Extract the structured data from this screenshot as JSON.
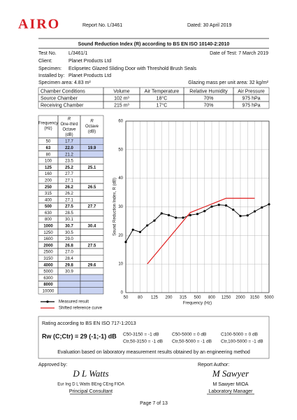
{
  "header": {
    "logo": "AIRO",
    "report_no": "Report No. L/3461",
    "dated": "Dated: 30 April 2019"
  },
  "title": "Sound Reduction Index (R) according to BS EN ISO 10140-2:2010",
  "info": {
    "test_no_label": "Test No.",
    "test_no": "L/3461/1",
    "date_of_test": "Date of Test: 7 March 2019",
    "client_label": "Client:",
    "client": "Planet Products Ltd",
    "specimen_label": "Specimen:",
    "specimen": "Eclipsetec Glazed Sliding Door with Threshold Brush Seals",
    "installed_label": "Installed by:",
    "installed": "Planet Products Ltd",
    "area": "Specimen area: 4.83 m²",
    "mass": "Glazing mass per unit area: 32 kg/m²"
  },
  "conditions": {
    "header": [
      "Chamber Conditions",
      "Volume",
      "Air Temperature",
      "Relative Humidity",
      "Air Pressure"
    ],
    "rows": [
      [
        "Source Chamber",
        "102 m³",
        "18°C",
        "70%",
        "975 hPa"
      ],
      [
        "Receiving Chamber",
        "215 m³",
        "17°C",
        "70%",
        "975 hPa"
      ]
    ]
  },
  "freq_table": {
    "header": [
      [
        "Frequency",
        "(Hz)"
      ],
      [
        "R",
        "One-third",
        "Octave",
        "(dB)"
      ],
      [
        "R",
        "Octave",
        "(dB)"
      ]
    ],
    "rows": [
      [
        "50",
        "17.7",
        null
      ],
      [
        "63",
        "22.0",
        "19.9"
      ],
      [
        "80",
        "21.2",
        null
      ],
      [
        "100",
        "23.5",
        null
      ],
      [
        "125",
        "25.2",
        "25.1"
      ],
      [
        "160",
        "27.7",
        null
      ],
      [
        "200",
        "27.1",
        null
      ],
      [
        "250",
        "26.2",
        "26.5"
      ],
      [
        "315",
        "26.2",
        null
      ],
      [
        "400",
        "27.1",
        null
      ],
      [
        "500",
        "27.5",
        "27.7"
      ],
      [
        "630",
        "28.5",
        null
      ],
      [
        "800",
        "30.1",
        null
      ],
      [
        "1000",
        "30.7",
        "30.4"
      ],
      [
        "1250",
        "30.5",
        null
      ],
      [
        "1600",
        "29.0",
        null
      ],
      [
        "2000",
        "26.8",
        "27.5"
      ],
      [
        "2500",
        "27.0",
        null
      ],
      [
        "3150",
        "28.4",
        null
      ],
      [
        "4000",
        "29.8",
        "29.6"
      ],
      [
        "5000",
        "30.9",
        null
      ],
      [
        "6300",
        null,
        null
      ],
      [
        "8000",
        null,
        null
      ],
      [
        "10000",
        null,
        null
      ]
    ]
  },
  "chart_data": {
    "type": "line",
    "x_label": "Frequency (Hz)",
    "y_label": "Sound Reduction Index, R (dB)",
    "categories": [
      "50",
      null,
      "80",
      null,
      "125",
      null,
      "200",
      null,
      "315",
      null,
      "500",
      null,
      "800",
      null,
      "1250",
      null,
      "2000",
      null,
      "3150",
      null,
      "5000"
    ],
    "ylim": [
      0,
      60
    ],
    "yticks": [
      0,
      10,
      20,
      30,
      40,
      50,
      60
    ],
    "grid": true,
    "series": [
      {
        "name": "Measured result",
        "color": "#000000",
        "marker": true,
        "values": [
          17.7,
          22.0,
          21.2,
          23.5,
          25.2,
          27.7,
          27.1,
          26.2,
          26.2,
          27.1,
          27.5,
          28.5,
          30.1,
          30.7,
          30.5,
          29.0,
          26.8,
          27.0,
          28.4,
          29.8,
          30.9
        ]
      },
      {
        "name": "Shifted reference curve",
        "color": "#e02020",
        "marker": false,
        "values": [
          null,
          null,
          null,
          10,
          13,
          16,
          19,
          22,
          25,
          28,
          29,
          30,
          31,
          32,
          33,
          33,
          33,
          33,
          33,
          null,
          null
        ]
      }
    ]
  },
  "rating": {
    "title": "Rating according to BS EN ISO 717-1:2013",
    "main": "Rw (C;Ctr) = 29 (-1;-1) dB",
    "terms": [
      "C50-3150 = -1 dB",
      "C50-5000 = 0 dB",
      "C100-5000 = 0 dB",
      "Ctr,50-3150 = -1 dB",
      "Ctr,50-5000 = -1 dB",
      "Ctr,100-5000 = -1 dB"
    ],
    "note": "Evaluation based on laboratory measurement results obtained by an engineering method"
  },
  "approval": {
    "approved_label": "Approved by:",
    "approved_sig": "D L Watts",
    "approved_name": "Eur Ing D L Watts BEng CEng FIOA",
    "approved_role": "Principal Consultant",
    "author_label": "Report Author:",
    "author_sig": "M Sawyer",
    "author_name": "M Sawyer MIOA",
    "author_role": "Laboratory Manager"
  },
  "footer": "Page 7 of 13"
}
